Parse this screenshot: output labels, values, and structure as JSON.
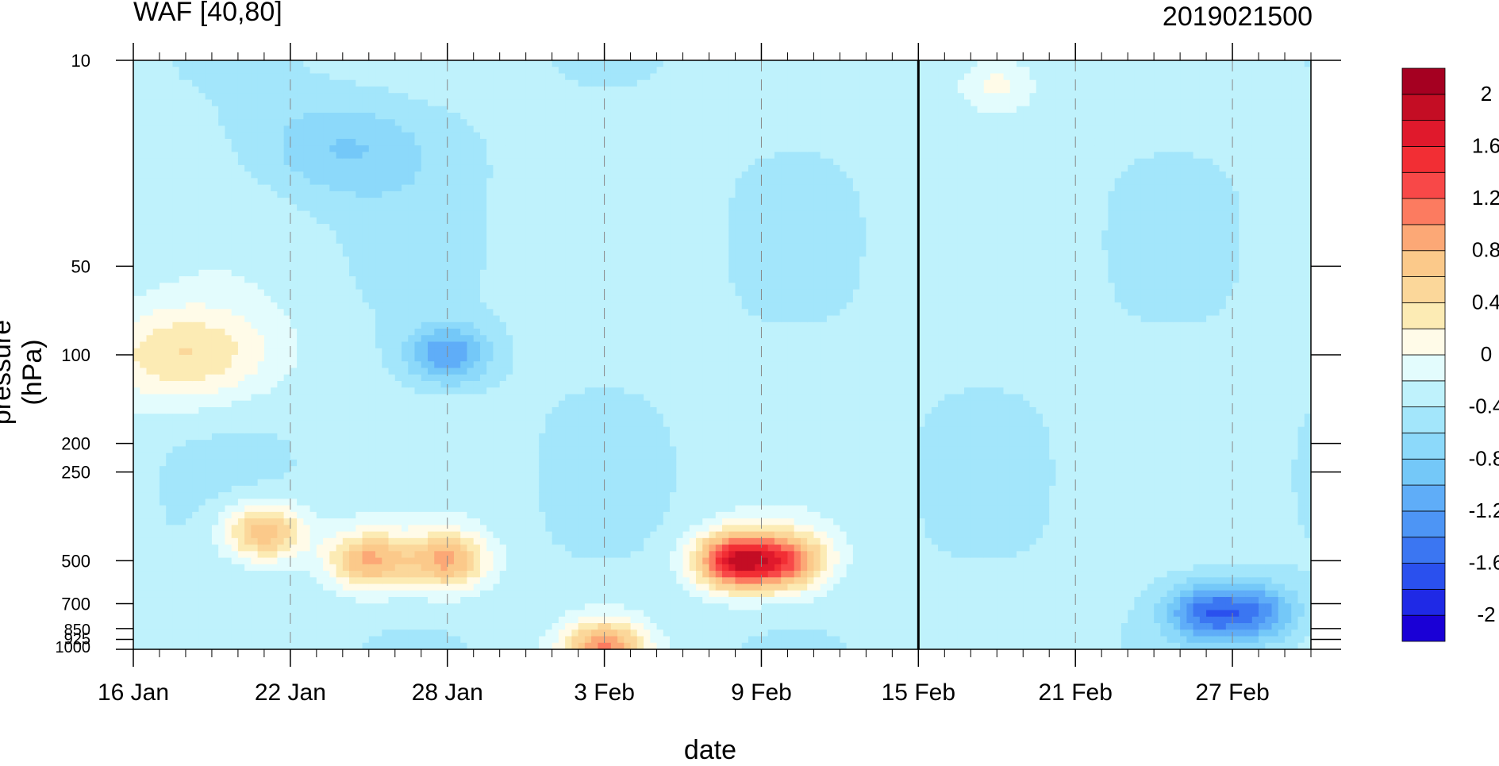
{
  "chart_data": {
    "type": "heatmap",
    "title": "WAF [40,80]",
    "subtitle": "2019021500",
    "xlabel": "date",
    "ylabel": "pressure (hPa)",
    "x_ticks": [
      "16 Jan",
      "22 Jan",
      "28 Jan",
      "3 Feb",
      "9 Feb",
      "15 Feb",
      "21 Feb",
      "27 Feb"
    ],
    "x_range": [
      "2019-01-16",
      "2019-03-02"
    ],
    "y_ticks": [
      10,
      50,
      100,
      200,
      250,
      500,
      700,
      850,
      925,
      1000
    ],
    "y_scale": "log",
    "y_range": [
      1000,
      10
    ],
    "current_date_marker": "15 Feb",
    "colorbar": {
      "levels": [
        -2.2,
        -2,
        -1.8,
        -1.6,
        -1.4,
        -1.2,
        -1,
        -0.8,
        -0.6,
        -0.4,
        -0.2,
        0,
        0.2,
        0.4,
        0.6,
        0.8,
        1,
        1.2,
        1.4,
        1.6,
        1.8,
        2,
        2.2
      ],
      "labels": [
        "-2",
        "-1.6",
        "-1.2",
        "-0.8",
        "-0.4",
        "0",
        "0.4",
        "0.8",
        "1.2",
        "1.6",
        "2"
      ],
      "colors": [
        "#1a00d6",
        "#1f29e6",
        "#2a50ee",
        "#3b76f2",
        "#4d95f5",
        "#5fadf8",
        "#74c8f8",
        "#8cd9fa",
        "#a3e6fb",
        "#bff2fc",
        "#e3fcfd",
        "#fffbe8",
        "#fcebb4",
        "#fbd79a",
        "#fbc98a",
        "#fca876",
        "#fc7b60",
        "#f84848",
        "#f22e34",
        "#e0192c",
        "#c40d24",
        "#a50021"
      ]
    },
    "features": [
      {
        "label": "positive maximum",
        "date": "2019-02-08",
        "pressure": 500,
        "value": 1.6
      },
      {
        "label": "positive maximum",
        "date": "2019-01-25",
        "pressure": 500,
        "value": 0.8
      },
      {
        "label": "positive maximum",
        "date": "2019-01-28",
        "pressure": 500,
        "value": 0.8
      },
      {
        "label": "positive maximum",
        "date": "2019-01-21",
        "pressure": 400,
        "value": 0.8
      },
      {
        "label": "positive maximum",
        "date": "2019-02-10",
        "pressure": 500,
        "value": 1.0
      },
      {
        "label": "positive maximum",
        "date": "2019-02-03",
        "pressure": 1000,
        "value": 1.0
      },
      {
        "label": "positive area",
        "date": "2019-01-18",
        "pressure": 100,
        "value": 0.4
      },
      {
        "label": "negative minimum",
        "date": "2019-01-28",
        "pressure": 100,
        "value": -1.2
      },
      {
        "label": "negative minimum",
        "date": "2019-02-26",
        "pressure": 750,
        "value": -1.4
      },
      {
        "label": "negative minimum",
        "date": "2019-02-28",
        "pressure": 750,
        "value": -1.2
      },
      {
        "label": "negative area",
        "date": "2019-01-24",
        "pressure": 20,
        "value": -0.8
      },
      {
        "label": "positive patch",
        "date": "2019-02-18",
        "pressure": 12,
        "value": 0.1
      }
    ]
  }
}
